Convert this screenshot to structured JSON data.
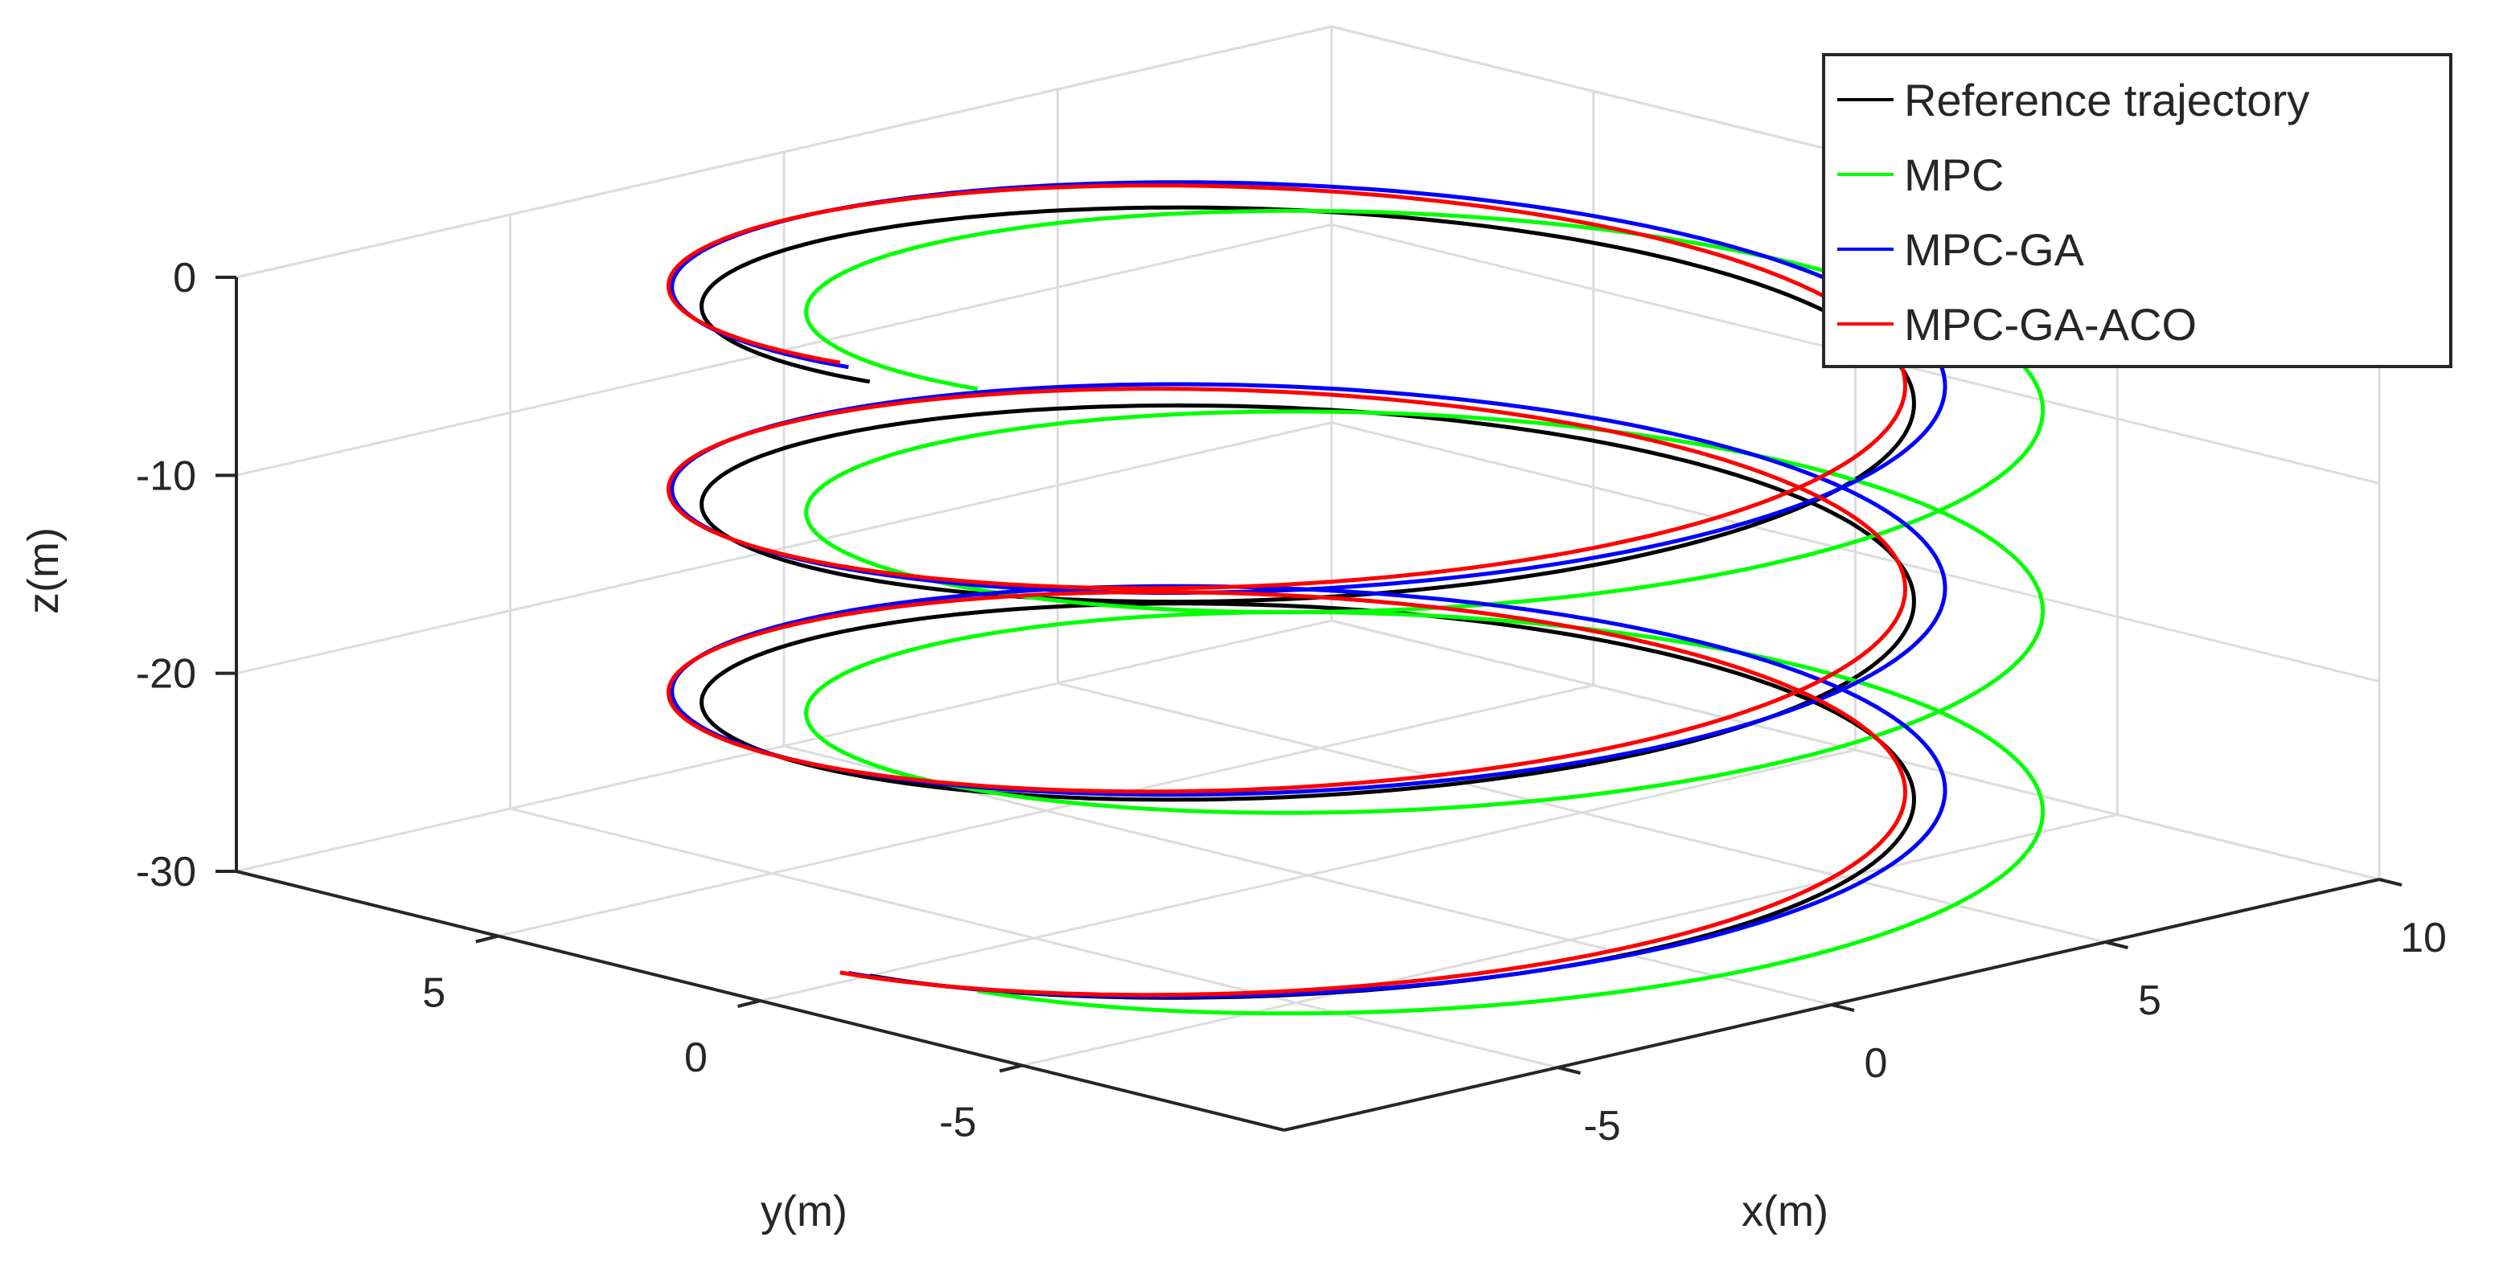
{
  "chart_data": {
    "type": "line3d",
    "title": "",
    "xlabel": "x(m)",
    "ylabel": "y(m)",
    "zlabel": "z(m)",
    "xlim": [
      -10,
      10
    ],
    "ylim": [
      -10,
      10
    ],
    "zlim": [
      -30,
      0
    ],
    "x_ticks": [
      {
        "value": -5,
        "label": "-5"
      },
      {
        "value": 0,
        "label": "0"
      },
      {
        "value": 5,
        "label": "5"
      },
      {
        "value": 10,
        "label": "10"
      }
    ],
    "y_ticks": [
      {
        "value": 5,
        "label": "5"
      },
      {
        "value": 0,
        "label": "0"
      },
      {
        "value": -5,
        "label": "-5"
      }
    ],
    "z_ticks": [
      {
        "value": 0,
        "label": "0"
      },
      {
        "value": -10,
        "label": "-10"
      },
      {
        "value": -20,
        "label": "-20"
      },
      {
        "value": -30,
        "label": "-30"
      }
    ],
    "grid": true,
    "legend": "top-right",
    "helix": {
      "center_x": 0,
      "center_y": 0,
      "radius": 8,
      "z_start": -30,
      "z_end": 0,
      "turns": 3
    },
    "series": [
      {
        "name": "Reference trajectory",
        "color": "#000000",
        "dx": 0,
        "dy": 0,
        "radius_scale": 1.0,
        "z_offset": 0
      },
      {
        "name": "MPC",
        "color": "#00ff00",
        "dx": 0.6,
        "dy": -1.6,
        "radius_scale": 1.02,
        "z_offset": 0.4
      },
      {
        "name": "MPC-GA",
        "color": "#0000ff",
        "dx": 0.3,
        "dy": 0.3,
        "radius_scale": 1.05,
        "z_offset": 0.6
      },
      {
        "name": "MPC-GA-ACO",
        "color": "#ff0000",
        "dx": 0,
        "dy": 0.4,
        "radius_scale": 1.02,
        "z_offset": 0.8
      }
    ]
  }
}
